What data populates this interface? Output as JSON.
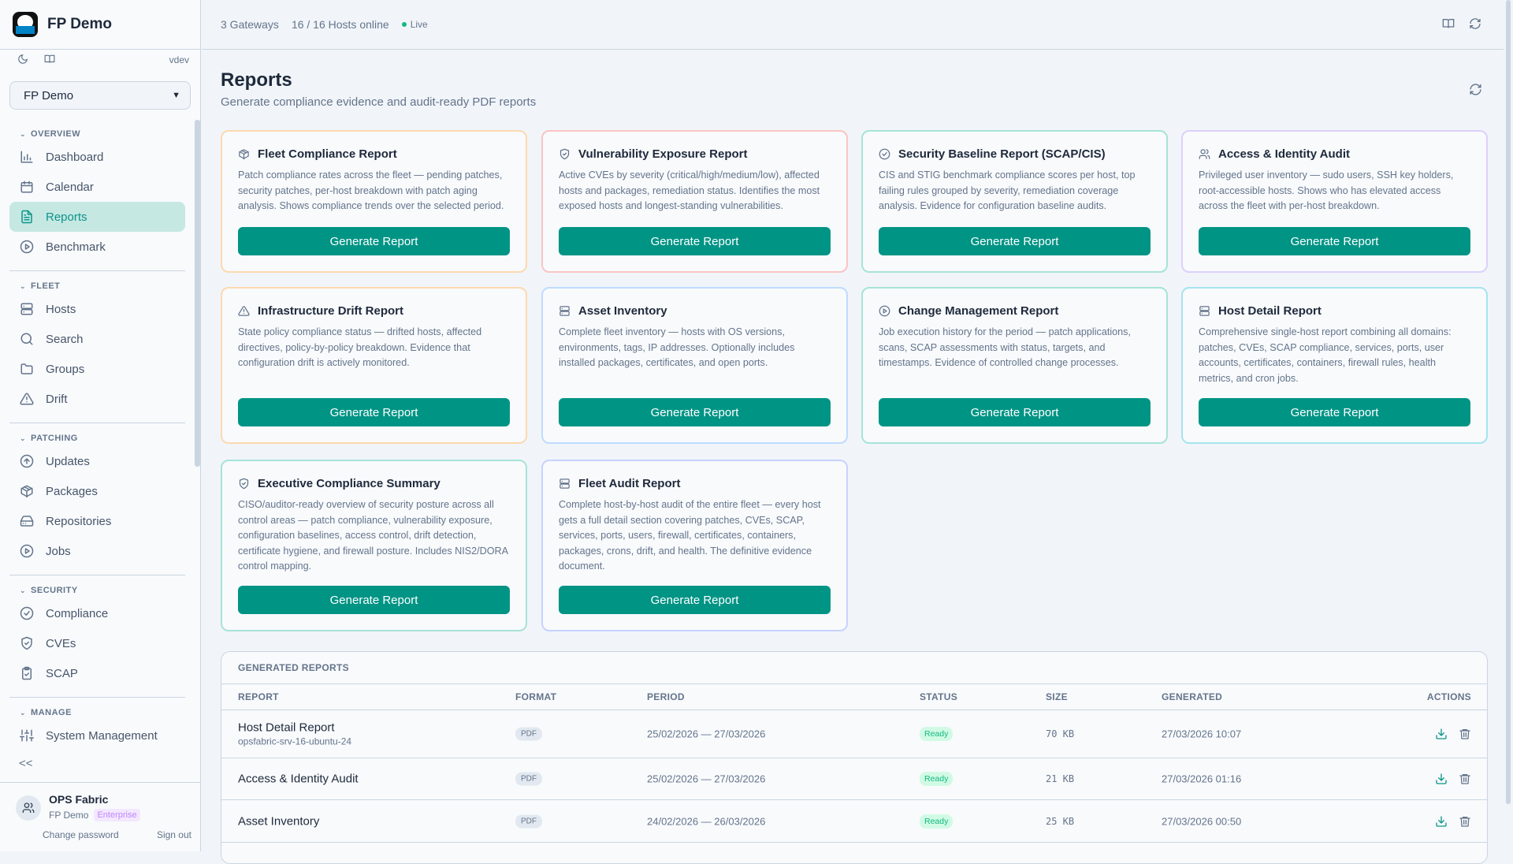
{
  "app": {
    "name": "FP Demo",
    "version": "vdev",
    "tenant": "FP Demo"
  },
  "sidebar": {
    "sections": [
      {
        "label": "OVERVIEW",
        "items": [
          {
            "label": "Dashboard",
            "icon": "bar-chart-icon"
          },
          {
            "label": "Calendar",
            "icon": "calendar-icon"
          },
          {
            "label": "Reports",
            "icon": "file-text-icon",
            "active": true
          },
          {
            "label": "Benchmark",
            "icon": "play-circle-icon"
          }
        ]
      },
      {
        "label": "FLEET",
        "items": [
          {
            "label": "Hosts",
            "icon": "server-icon"
          },
          {
            "label": "Search",
            "icon": "search-icon"
          },
          {
            "label": "Groups",
            "icon": "folder-icon"
          },
          {
            "label": "Drift",
            "icon": "warning-icon"
          }
        ]
      },
      {
        "label": "PATCHING",
        "items": [
          {
            "label": "Updates",
            "icon": "arrow-up-circle-icon"
          },
          {
            "label": "Packages",
            "icon": "package-icon"
          },
          {
            "label": "Repositories",
            "icon": "hard-drive-icon"
          },
          {
            "label": "Jobs",
            "icon": "play-circle-icon"
          }
        ]
      },
      {
        "label": "SECURITY",
        "items": [
          {
            "label": "Compliance",
            "icon": "check-circle-icon"
          },
          {
            "label": "CVEs",
            "icon": "shield-icon"
          },
          {
            "label": "SCAP",
            "icon": "clipboard-check-icon"
          }
        ]
      },
      {
        "label": "MANAGE",
        "items": [
          {
            "label": "System Management",
            "icon": "sliders-icon"
          }
        ]
      }
    ],
    "collapse": "<<",
    "user": {
      "name": "OPS Fabric",
      "org": "FP Demo",
      "plan": "Enterprise",
      "change_password": "Change password",
      "sign_out": "Sign out"
    }
  },
  "topbar": {
    "gateways": "3 Gateways",
    "hosts": "16 / 16 Hosts online",
    "live": "Live",
    "live_color": "#10b981"
  },
  "page": {
    "title": "Reports",
    "subtitle": "Generate compliance evidence and audit-ready PDF reports"
  },
  "cards": [
    {
      "title": "Fleet Compliance Report",
      "icon": "package-icon",
      "border": "#fcd9b0",
      "desc": "Patch compliance rates across the fleet — pending patches, security patches, per-host breakdown with patch aging analysis. Shows compliance trends over the selected period.",
      "button": "Generate Report"
    },
    {
      "title": "Vulnerability Exposure Report",
      "icon": "shield-icon",
      "border": "#fbc4c4",
      "desc": "Active CVEs by severity (critical/high/medium/low), affected hosts and packages, remediation status. Identifies the most exposed hosts and longest-standing vulnerabilities.",
      "button": "Generate Report"
    },
    {
      "title": "Security Baseline Report (SCAP/CIS)",
      "icon": "check-circle-icon",
      "border": "#a7e3d8",
      "desc": "CIS and STIG benchmark compliance scores per host, top failing rules grouped by severity, remediation coverage analysis. Evidence for configuration baseline audits.",
      "button": "Generate Report"
    },
    {
      "title": "Access & Identity Audit",
      "icon": "users-icon",
      "border": "#ddd0fb",
      "desc": "Privileged user inventory — sudo users, SSH key holders, root-accessible hosts. Shows who has elevated access across the fleet with per-host breakdown.",
      "button": "Generate Report"
    },
    {
      "title": "Infrastructure Drift Report",
      "icon": "warning-icon",
      "border": "#fcd9b0",
      "desc": "State policy compliance status — drifted hosts, affected directives, policy-by-policy breakdown. Evidence that configuration drift is actively monitored.",
      "button": "Generate Report"
    },
    {
      "title": "Asset Inventory",
      "icon": "server-icon",
      "border": "#bfdbfe",
      "desc": "Complete fleet inventory — hosts with OS versions, environments, tags, IP addresses. Optionally includes installed packages, certificates, and open ports.",
      "button": "Generate Report"
    },
    {
      "title": "Change Management Report",
      "icon": "play-circle-icon",
      "border": "#a7e3d8",
      "desc": "Job execution history for the period — patch applications, scans, SCAP assessments with status, targets, and timestamps. Evidence of controlled change processes.",
      "button": "Generate Report"
    },
    {
      "title": "Host Detail Report",
      "icon": "server-icon",
      "border": "#a5e4ef",
      "desc": "Comprehensive single-host report combining all domains: patches, CVEs, SCAP compliance, services, ports, user accounts, certificates, containers, firewall rules, health metrics, and cron jobs.",
      "button": "Generate Report"
    },
    {
      "title": "Executive Compliance Summary",
      "icon": "shield-icon",
      "border": "#a7e3d8",
      "desc": "CISO/auditor-ready overview of security posture across all control areas — patch compliance, vulnerability exposure, configuration baselines, access control, drift detection, certificate hygiene, and firewall posture. Includes NIS2/DORA control mapping.",
      "button": "Generate Report"
    },
    {
      "title": "Fleet Audit Report",
      "icon": "server-icon",
      "border": "#c7d2fe",
      "desc": "Complete host-by-host audit of the entire fleet — every host gets a full detail section covering patches, CVEs, SCAP, services, ports, users, firewall, certificates, containers, packages, crons, drift, and health. The definitive evidence document.",
      "button": "Generate Report"
    }
  ],
  "generated": {
    "title": "GENERATED REPORTS",
    "columns": [
      "REPORT",
      "FORMAT",
      "PERIOD",
      "STATUS",
      "SIZE",
      "GENERATED",
      "ACTIONS"
    ],
    "rows": [
      {
        "report": "Host Detail Report",
        "sub": "opsfabric-srv-16-ubuntu-24",
        "format": "PDF",
        "period": "25/02/2026 — 27/03/2026",
        "status": "Ready",
        "size": "70 KB",
        "generated": "27/03/2026 10:07"
      },
      {
        "report": "Access & Identity Audit",
        "format": "PDF",
        "period": "25/02/2026 — 27/03/2026",
        "status": "Ready",
        "size": "21 KB",
        "generated": "27/03/2026 01:16"
      },
      {
        "report": "Asset Inventory",
        "format": "PDF",
        "period": "24/02/2026 — 26/03/2026",
        "status": "Ready",
        "size": "25 KB",
        "generated": "27/03/2026 00:50"
      }
    ]
  },
  "colors": {
    "accent": "#009485",
    "active_bg": "#c5e8e3"
  }
}
